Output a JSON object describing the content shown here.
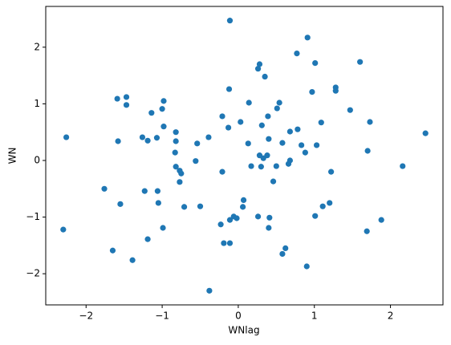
{
  "chart_data": {
    "type": "scatter",
    "x_label": "WNlag",
    "y_label": "WN",
    "color": "#1f77b4",
    "xlim": [
      -2.53,
      2.69
    ],
    "ylim": [
      -2.55,
      2.72
    ],
    "xticks": [
      {
        "value": -2,
        "label": "−2"
      },
      {
        "value": -1,
        "label": "−1"
      },
      0,
      1,
      2
    ],
    "yticks": [
      {
        "value": -2,
        "label": "−2"
      },
      {
        "value": -1,
        "label": "−1"
      },
      0,
      1,
      2
    ],
    "x": [
      -0.11,
      0.91,
      0.77,
      0.28,
      1.01,
      1.6,
      0.26,
      0.35,
      -0.12,
      1.28,
      1.28,
      0.97,
      -1.59,
      -1.47,
      -1.47,
      -0.98,
      -1.0,
      0.14,
      0.54,
      0.51,
      1.47,
      -1.14,
      -0.21,
      0.39,
      0.03,
      1.09,
      1.73,
      0.31,
      -0.98,
      -0.13,
      0.78,
      0.68,
      -0.82,
      2.46,
      -2.26,
      -1.26,
      -1.07,
      -0.39,
      -1.19,
      -1.58,
      -0.82,
      0.4,
      0.58,
      -0.54,
      0.13,
      0.83,
      1.03,
      -0.83,
      0.88,
      1.7,
      0.28,
      0.38,
      0.33,
      0.68,
      -0.56,
      0.66,
      0.17,
      0.3,
      0.5,
      -0.82,
      2.16,
      -0.77,
      -0.75,
      -0.21,
      1.22,
      0.46,
      -0.77,
      -1.76,
      -1.23,
      -1.06,
      0.07,
      -1.55,
      -1.05,
      -0.71,
      -0.5,
      0.06,
      1.2,
      1.11,
      -0.06,
      0.26,
      1.01,
      -0.02,
      0.41,
      -0.11,
      1.88,
      -0.23,
      0.4,
      -2.3,
      -0.99,
      1.69,
      -1.19,
      -0.19,
      -0.11,
      -1.65,
      0.62,
      0.58,
      -1.39,
      0.9,
      -0.38
    ],
    "y": [
      2.47,
      2.17,
      1.89,
      1.7,
      1.72,
      1.74,
      1.62,
      1.48,
      1.26,
      1.29,
      1.23,
      1.21,
      1.09,
      1.12,
      0.98,
      1.05,
      0.91,
      1.02,
      1.02,
      0.92,
      0.89,
      0.84,
      0.78,
      0.78,
      0.68,
      0.67,
      0.68,
      0.62,
      0.6,
      0.58,
      0.55,
      0.51,
      0.5,
      0.48,
      0.41,
      0.41,
      0.4,
      0.41,
      0.35,
      0.34,
      0.34,
      0.38,
      0.31,
      0.3,
      0.3,
      0.27,
      0.27,
      0.14,
      0.14,
      0.17,
      0.09,
      0.09,
      0.04,
      0.0,
      -0.01,
      -0.06,
      -0.1,
      -0.11,
      -0.1,
      -0.11,
      -0.1,
      -0.18,
      -0.23,
      -0.2,
      -0.2,
      -0.37,
      -0.38,
      -0.5,
      -0.54,
      -0.54,
      -0.7,
      -0.77,
      -0.75,
      -0.82,
      -0.81,
      -0.82,
      -0.75,
      -0.81,
      -0.99,
      -0.99,
      -0.98,
      -1.02,
      -1.01,
      -1.05,
      -1.05,
      -1.13,
      -1.19,
      -1.22,
      -1.19,
      -1.25,
      -1.39,
      -1.46,
      -1.46,
      -1.59,
      -1.55,
      -1.65,
      -1.76,
      -1.87,
      -2.3
    ]
  }
}
